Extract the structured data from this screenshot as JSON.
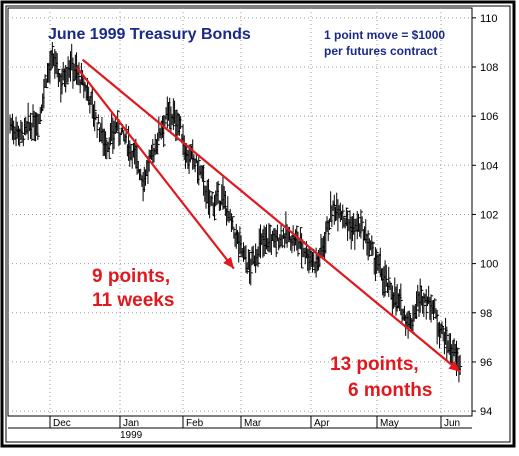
{
  "chart_data": {
    "type": "bar",
    "subtype": "ohlc",
    "title": "June 1999 Treasury Bonds",
    "note_lines": [
      "1 point move = $1000",
      "per futures contract"
    ],
    "y_ticks": [
      94,
      96,
      98,
      100,
      102,
      104,
      106,
      108,
      110
    ],
    "ylim": [
      93.8,
      110.4
    ],
    "x_ticks": [
      "Dec",
      "Jan",
      "Feb",
      "Mar",
      "Apr",
      "May",
      "Jun"
    ],
    "year_label": "1999",
    "grid": true,
    "price_path": [
      [
        0,
        105.7
      ],
      [
        10,
        105.2
      ],
      [
        17,
        105.6
      ],
      [
        24,
        105.9
      ],
      [
        30,
        107.6
      ],
      [
        36,
        108.3
      ],
      [
        42,
        107.4
      ],
      [
        50,
        108.2
      ],
      [
        58,
        107.5
      ],
      [
        65,
        106.9
      ],
      [
        72,
        105.7
      ],
      [
        80,
        104.8
      ],
      [
        88,
        105.6
      ],
      [
        96,
        105.0
      ],
      [
        103,
        104.4
      ],
      [
        110,
        103.4
      ],
      [
        117,
        104.3
      ],
      [
        125,
        105.6
      ],
      [
        132,
        106.1
      ],
      [
        140,
        105.7
      ],
      [
        146,
        104.4
      ],
      [
        152,
        104.2
      ],
      [
        158,
        103.6
      ],
      [
        164,
        102.5
      ],
      [
        170,
        102.5
      ],
      [
        176,
        102.7
      ],
      [
        184,
        101.4
      ],
      [
        191,
        100.6
      ],
      [
        198,
        99.8
      ],
      [
        205,
        100.6
      ],
      [
        212,
        101.0
      ],
      [
        219,
        100.9
      ],
      [
        226,
        101.2
      ],
      [
        233,
        101.0
      ],
      [
        240,
        100.8
      ],
      [
        247,
        100.3
      ],
      [
        254,
        100.0
      ],
      [
        259,
        100.8
      ],
      [
        265,
        102.0
      ],
      [
        271,
        102.4
      ],
      [
        277,
        101.8
      ],
      [
        283,
        101.4
      ],
      [
        289,
        101.5
      ],
      [
        295,
        100.9
      ],
      [
        301,
        100.2
      ],
      [
        307,
        99.6
      ],
      [
        313,
        99.0
      ],
      [
        319,
        98.6
      ],
      [
        325,
        98.0
      ],
      [
        331,
        97.5
      ],
      [
        337,
        98.5
      ],
      [
        343,
        98.6
      ],
      [
        349,
        98.3
      ],
      [
        355,
        97.4
      ],
      [
        361,
        96.8
      ],
      [
        367,
        96.3
      ],
      [
        372,
        95.8
      ]
    ],
    "trendlines": [
      {
        "from": [
          55,
          108.0
        ],
        "to": [
          185,
          99.8
        ],
        "label_lines": [
          "9 points,",
          "11 weeks"
        ]
      },
      {
        "from": [
          60,
          108.3
        ],
        "to": [
          372,
          95.6
        ],
        "label_lines": [
          "13 points,",
          "6 months"
        ]
      }
    ]
  }
}
